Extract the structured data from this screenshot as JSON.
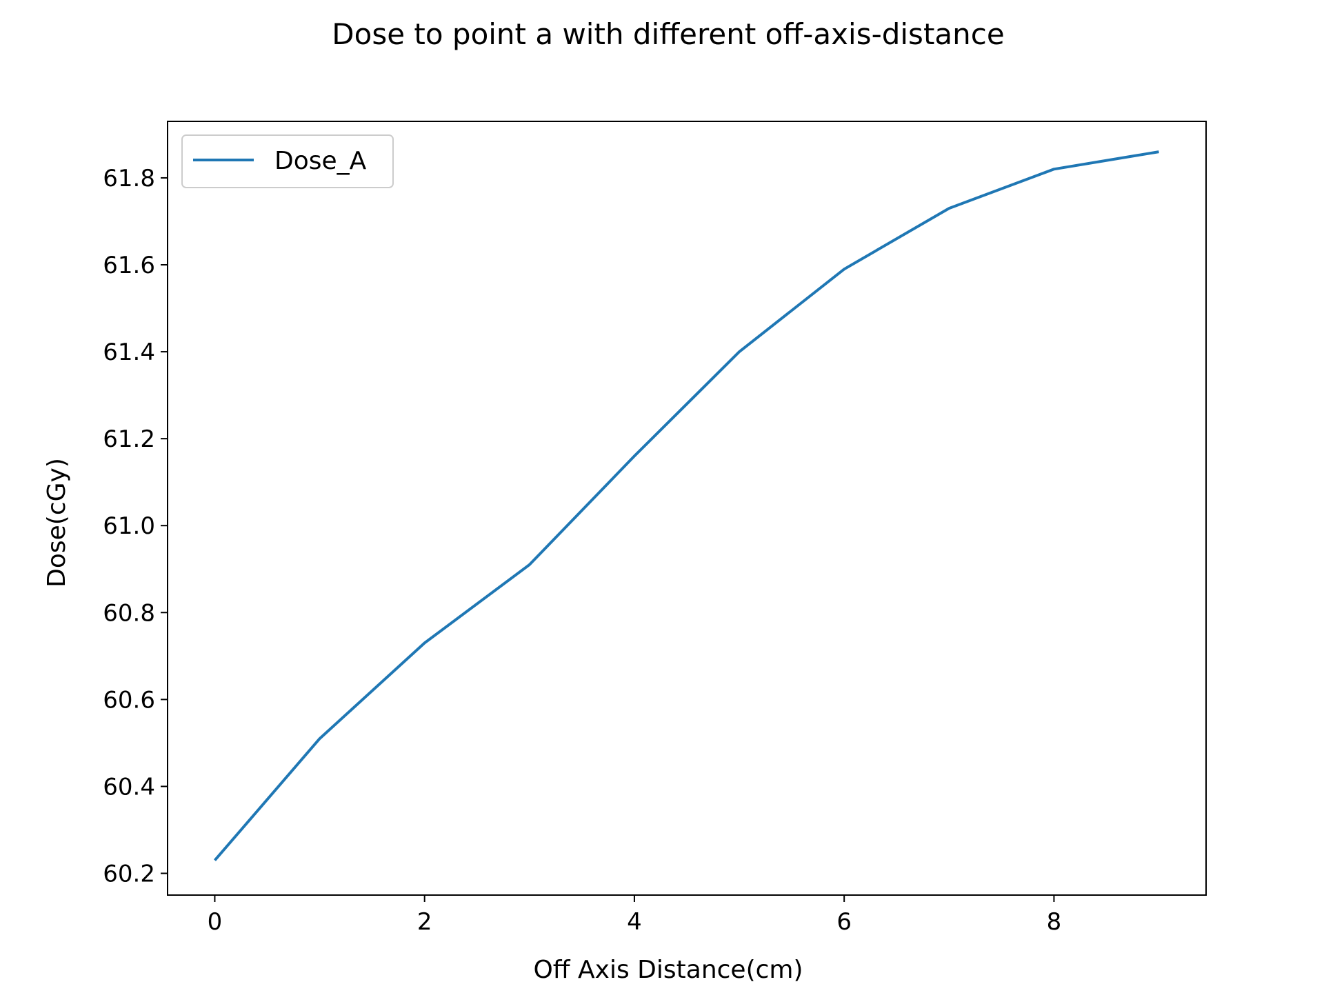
{
  "chart_data": {
    "type": "line",
    "title": "Dose to point a with different off-axis-distance",
    "xlabel": "Off Axis Distance(cm)",
    "ylabel": "Dose(cGy)",
    "xlim": [
      -0.45,
      9.45
    ],
    "ylim": [
      60.15,
      61.93
    ],
    "xticks": [
      0,
      2,
      4,
      6,
      8
    ],
    "yticks": [
      60.2,
      60.4,
      60.6,
      60.8,
      61.0,
      61.2,
      61.4,
      61.6,
      61.8
    ],
    "xtick_labels": [
      "0",
      "2",
      "4",
      "6",
      "8"
    ],
    "ytick_labels": [
      "60.2",
      "60.4",
      "60.6",
      "60.8",
      "61.0",
      "61.2",
      "61.4",
      "61.6",
      "61.8"
    ],
    "grid": false,
    "legend_position": "upper-left",
    "series": [
      {
        "name": "Dose_A",
        "color": "#1f77b4",
        "x": [
          0,
          1,
          2,
          3,
          4,
          5,
          6,
          7,
          8,
          9
        ],
        "y": [
          60.23,
          60.51,
          60.73,
          60.91,
          61.16,
          61.4,
          61.59,
          61.73,
          61.82,
          61.86
        ]
      }
    ]
  }
}
